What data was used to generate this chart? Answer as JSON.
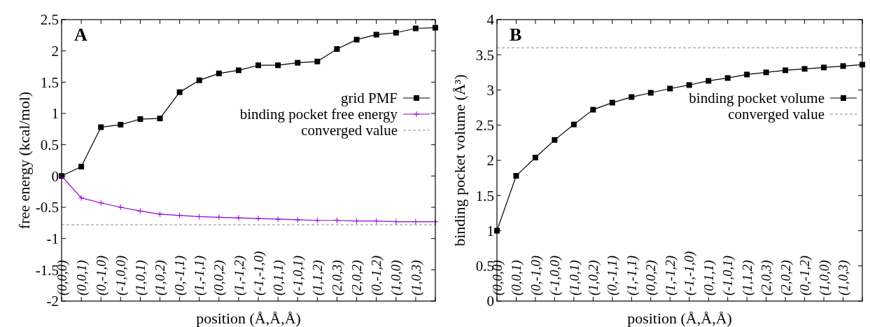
{
  "chart_data": [
    {
      "type": "line",
      "xlabel": "position (Å,Å,Å)",
      "ylabel": "free energy (kcal/mol)",
      "categories": [
        "(0,0,0)",
        "(0,0,1)",
        "(0,-1,0)",
        "(-1,0,0)",
        "(1,0,1)",
        "(1,0,2)",
        "(0,-1,1)",
        "(1,-1,1)",
        "(0,0,2)",
        "(1,-1,2)",
        "(-1,-1,0)",
        "(0,1,1)",
        "(-1,0,1)",
        "(1,1,2)",
        "(2,0,3)",
        "(2,0,2)",
        "(0,-1,2)",
        "(1,0,0)",
        "(1,0,3)",
        null
      ],
      "ylim": [
        -2,
        2.5
      ],
      "yticks": [
        -2,
        -1.5,
        -1,
        -0.5,
        0,
        0.5,
        1,
        1.5,
        2,
        2.5
      ],
      "grid": false,
      "legend": "right",
      "annotations": [
        "A"
      ],
      "series": [
        {
          "name": "grid PMF",
          "color": "#000000",
          "marker": "square",
          "values": [
            0,
            0.15,
            0.78,
            0.82,
            0.91,
            0.92,
            1.34,
            1.53,
            1.64,
            1.69,
            1.77,
            1.77,
            1.81,
            1.83,
            2.03,
            2.18,
            2.26,
            2.29,
            2.36,
            2.37
          ]
        },
        {
          "name": "binding pocket free energy",
          "color": "#9400d3",
          "marker": "cross",
          "values": [
            0,
            -0.35,
            -0.43,
            -0.5,
            -0.56,
            -0.61,
            -0.63,
            -0.65,
            -0.66,
            -0.67,
            -0.68,
            -0.69,
            -0.7,
            -0.71,
            -0.71,
            -0.72,
            -0.72,
            -0.73,
            -0.73,
            -0.73
          ]
        }
      ],
      "ref_lines": [
        {
          "axis": "y",
          "value": -0.78,
          "label": "converged value",
          "color": "#888888",
          "line_style": "dashed"
        }
      ]
    },
    {
      "type": "line",
      "xlabel": "position (Å,Å,Å)",
      "ylabel": "binding pocket volume (Å³)",
      "categories": [
        "(0,0,0)",
        "(0,0,1)",
        "(0,-1,0)",
        "(-1,0,0)",
        "(1,0,1)",
        "(1,0,2)",
        "(0,-1,1)",
        "(1,-1,1)",
        "(0,0,2)",
        "(1,-1,2)",
        "(-1,-1,0)",
        "(0,1,1)",
        "(-1,0,1)",
        "(1,1,2)",
        "(2,0,3)",
        "(2,0,2)",
        "(0,-1,2)",
        "(1,0,0)",
        "(1,0,3)",
        null
      ],
      "ylim": [
        0,
        4
      ],
      "yticks": [
        0,
        0.5,
        1,
        1.5,
        2,
        2.5,
        3,
        3.5,
        4
      ],
      "grid": false,
      "legend": "right",
      "annotations": [
        "B"
      ],
      "series": [
        {
          "name": "binding pocket volume",
          "color": "#000000",
          "marker": "square",
          "values": [
            1,
            1.78,
            2.04,
            2.29,
            2.51,
            2.72,
            2.82,
            2.9,
            2.96,
            3.02,
            3.07,
            3.13,
            3.17,
            3.22,
            3.25,
            3.28,
            3.3,
            3.32,
            3.34,
            3.36
          ]
        }
      ],
      "ref_lines": [
        {
          "axis": "y",
          "value": 3.6,
          "label": "converged value",
          "color": "#888888",
          "line_style": "dashed"
        }
      ]
    }
  ]
}
